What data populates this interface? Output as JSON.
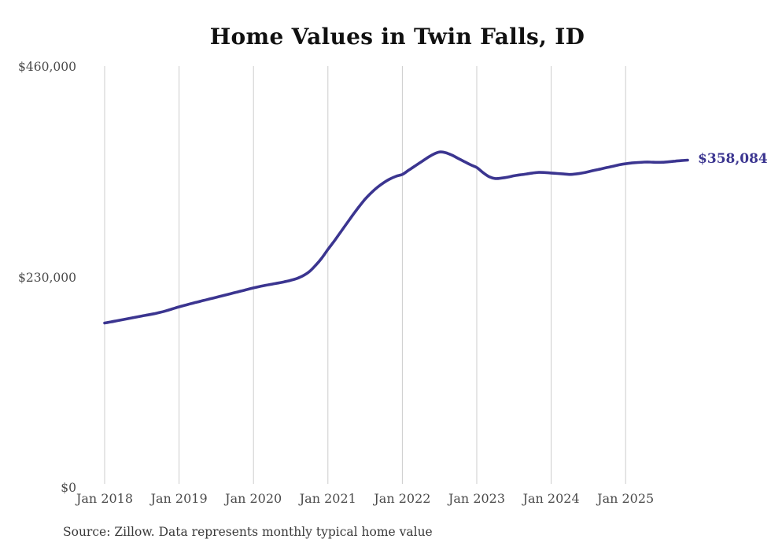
{
  "title": "Home Values in Twin Falls, ID",
  "source_note": "Source: Zillow. Data represents monthly typical home value",
  "end_label": "$358,084",
  "colors": {
    "line": "#3b3590",
    "grid": "#cccccc",
    "tick_label": "#4b4b4b",
    "title": "#111111",
    "source": "#3a3a3a",
    "end_label": "#3b3590"
  },
  "chart_data": {
    "type": "line",
    "title": "Home Values in Twin Falls, ID",
    "xlabel": "",
    "ylabel": "",
    "ylim": [
      0,
      460000
    ],
    "grid": "vertical-only",
    "legend": "none",
    "x_start": "2018-01",
    "frequency": "monthly",
    "x_tick_labels": [
      "Jan 2018",
      "Jan 2019",
      "Jan 2020",
      "Jan 2021",
      "Jan 2022",
      "Jan 2023",
      "Jan 2024",
      "Jan 2025"
    ],
    "y_ticks": [
      {
        "value": 0,
        "label": "$0"
      },
      {
        "value": 230000,
        "label": "$230,000"
      },
      {
        "value": 460000,
        "label": "$460,000"
      }
    ],
    "series": [
      {
        "name": "Typical home value",
        "values": [
          180100,
          181300,
          182600,
          183900,
          185200,
          186500,
          187800,
          189000,
          190300,
          191800,
          193600,
          195700,
          197800,
          199600,
          201400,
          203100,
          204800,
          206500,
          208200,
          209900,
          211600,
          213300,
          215000,
          216800,
          218500,
          220000,
          221400,
          222600,
          223800,
          225200,
          226800,
          228800,
          231800,
          236200,
          243000,
          251000,
          260500,
          269500,
          279000,
          288500,
          298000,
          307000,
          315500,
          322500,
          328500,
          333500,
          337500,
          340500,
          342500,
          347000,
          351500,
          356000,
          360500,
          364500,
          367000,
          366200,
          363500,
          360000,
          356500,
          353000,
          350000,
          344500,
          340000,
          338000,
          338500,
          339500,
          341000,
          342000,
          343000,
          344000,
          344700,
          344500,
          344000,
          343500,
          343000,
          342500,
          343000,
          344000,
          345500,
          347000,
          348500,
          350000,
          351500,
          353000,
          354200,
          355000,
          355500,
          356000,
          356000,
          355700,
          355800,
          356300,
          357000,
          357600,
          358084
        ]
      }
    ],
    "last_value": 358084,
    "last_value_label": "$358,084"
  }
}
